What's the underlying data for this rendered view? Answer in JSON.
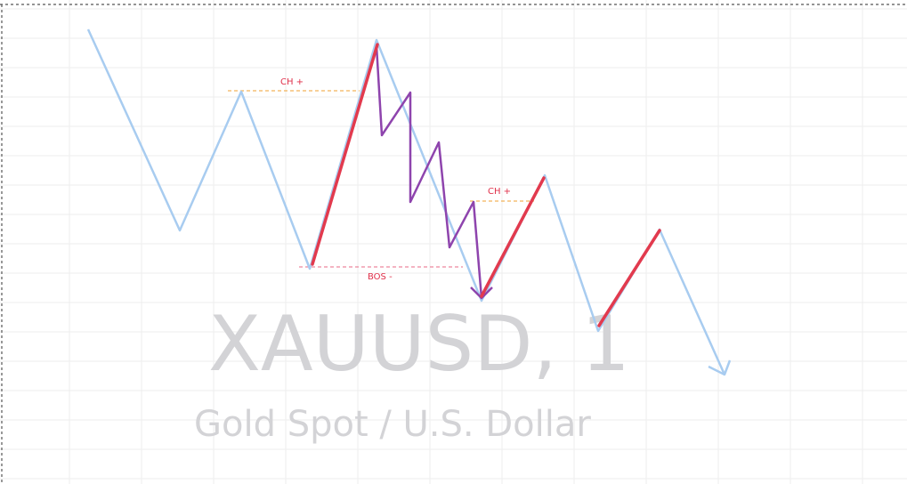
{
  "watermark": {
    "symbol": "XAUUSD, 1",
    "description": "Gold Spot / U.S. Dollar"
  },
  "chart_data": {
    "type": "line",
    "grid": true,
    "colors": {
      "price_line": "#a8ccf0",
      "impulse": "#e23a4e",
      "internal": "#8e44ad",
      "choch_level": "#f0a030",
      "bos_level": "#e86a86",
      "label": "#e0304a",
      "watermark": "#d3d3d6",
      "grid": "#eeeeee",
      "frame": "#555555"
    },
    "annotations": [
      {
        "id": "choch-1",
        "label": "CH +",
        "style": "dashed",
        "color": "#f0a030"
      },
      {
        "id": "bos-1",
        "label": "BOS -",
        "style": "dashed",
        "color": "#e86a86"
      },
      {
        "id": "choch-2",
        "label": "CH +",
        "style": "dashed",
        "color": "#f0a030"
      }
    ]
  }
}
